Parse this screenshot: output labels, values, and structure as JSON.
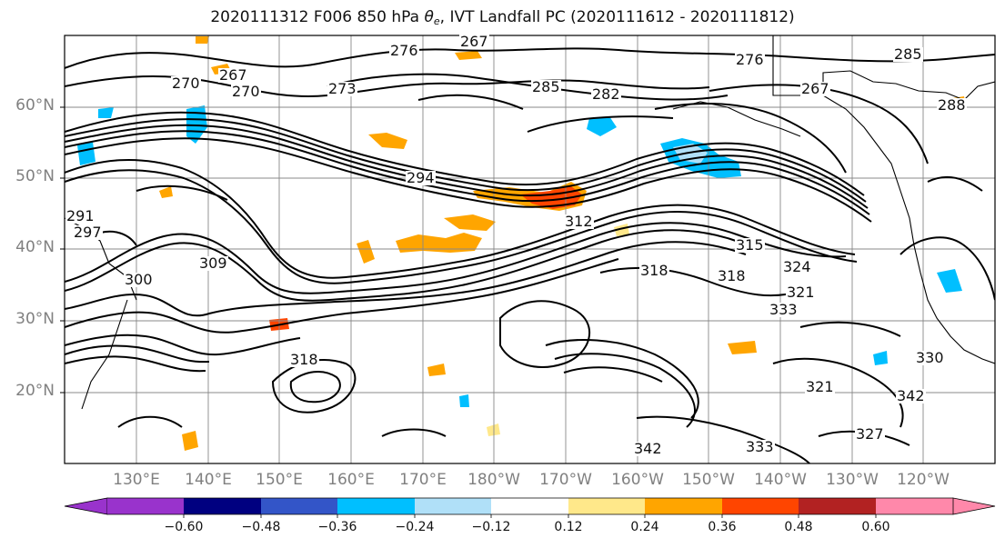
{
  "title": {
    "prefix": "2020111312 F006 850 hPa ",
    "theta": "θ",
    "sub": "e",
    "suffix": ", IVT Landfall PC (2020111612 - 2020111812)"
  },
  "lat_labels": [
    "60°N",
    "50°N",
    "40°N",
    "30°N",
    "20°N"
  ],
  "lon_labels": [
    "130°E",
    "140°E",
    "150°E",
    "160°E",
    "170°E",
    "180°W",
    "170°W",
    "160°W",
    "150°W",
    "140°W",
    "130°W",
    "120°W"
  ],
  "colorbar": {
    "ticks": [
      "−0.60",
      "−0.48",
      "−0.36",
      "−0.24",
      "−0.12",
      "0.12",
      "0.24",
      "0.36",
      "0.48",
      "0.60"
    ],
    "colors": [
      "#9933cc",
      "#000080",
      "#3355c8",
      "#00bfff",
      "#b0e0f8",
      "#ffffff",
      "#ffe88a",
      "#ffa500",
      "#ff4500",
      "#b22222",
      "#ff88aa"
    ]
  },
  "contour_labels": [
    "267",
    "270",
    "276",
    "267",
    "270",
    "273",
    "276",
    "285",
    "282",
    "267",
    "285",
    "288",
    "294",
    "291",
    "297",
    "300",
    "309",
    "312",
    "318",
    "315",
    "318",
    "324",
    "321",
    "333",
    "318",
    "321",
    "342",
    "342",
    "333",
    "327",
    "330"
  ]
}
